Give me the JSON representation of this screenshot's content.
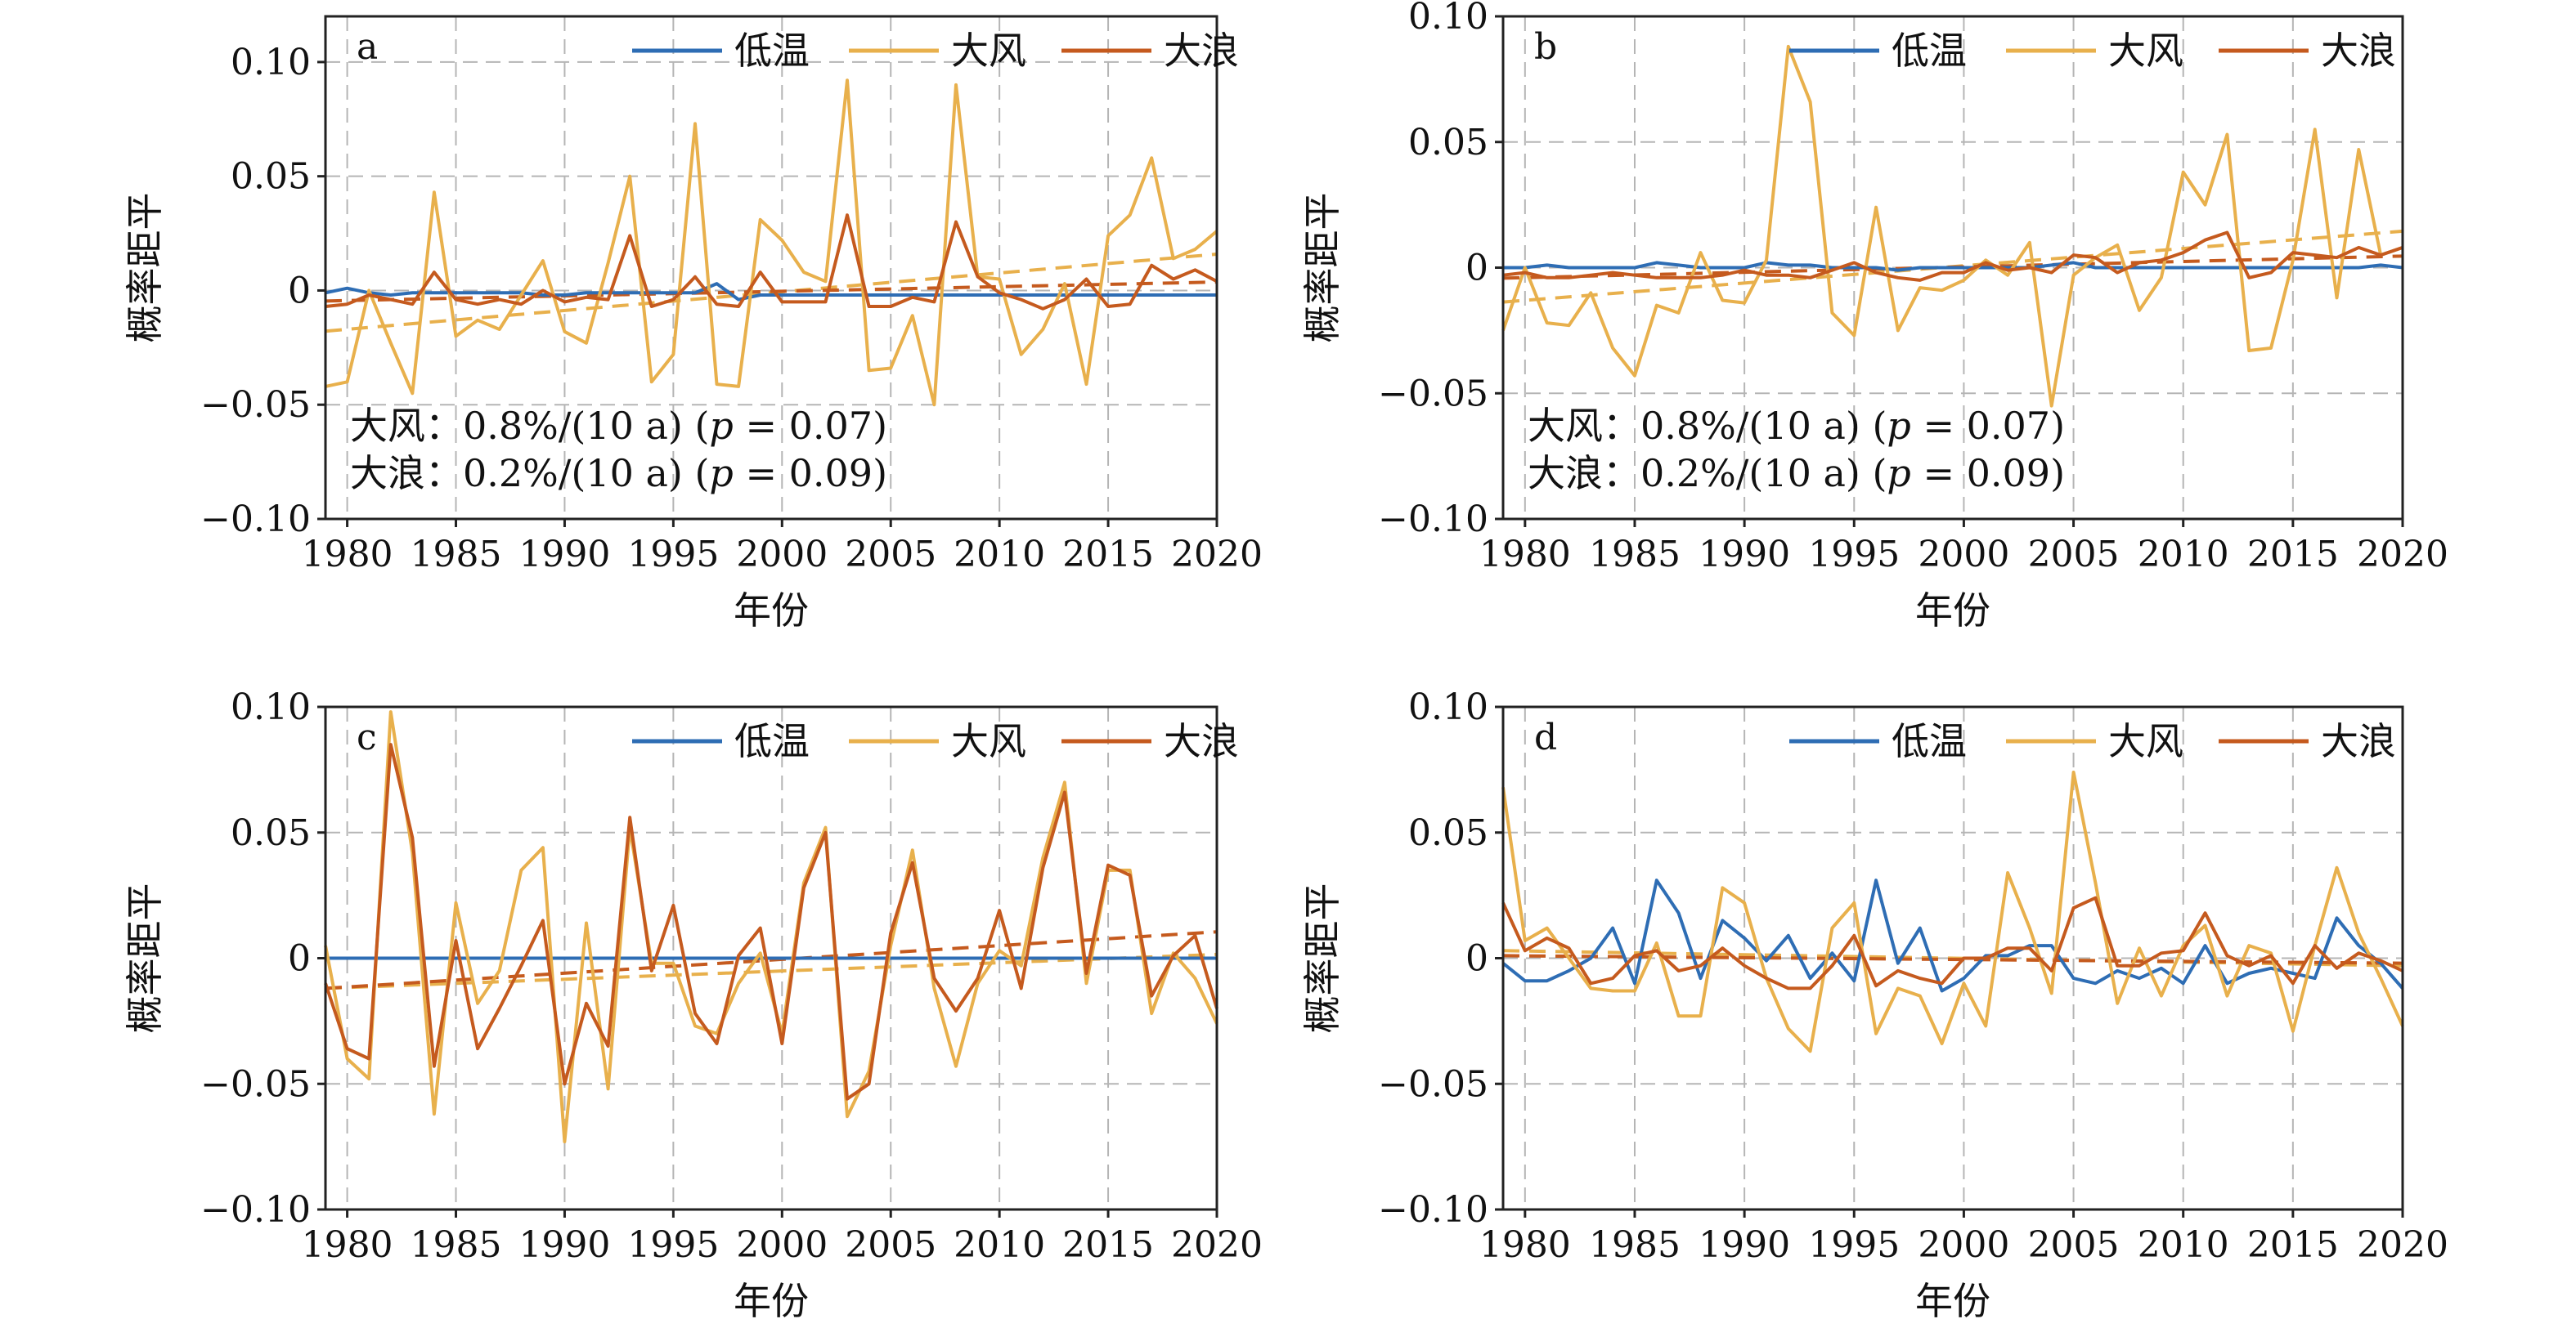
{
  "figure": {
    "colors": {
      "low_temp": "#2E6DB4",
      "gale": "#E8B04C",
      "wave": "#C55A1E",
      "grid": "#b5b5b5",
      "axis": "#222222"
    },
    "legend": [
      "低温",
      "大风",
      "大浪"
    ],
    "xlabel": "年份",
    "ylabel": "概率距平"
  },
  "chart_data": [
    {
      "type": "line",
      "panel": "a",
      "title": "",
      "xlabel": "年份",
      "ylabel": "概率距平",
      "xlim": [
        1979,
        2020
      ],
      "ylim": [
        -0.1,
        0.12
      ],
      "xticks": [
        1980,
        1985,
        1990,
        1995,
        2000,
        2005,
        2010,
        2015,
        2020
      ],
      "yticks": [
        -0.1,
        -0.05,
        0,
        0.05,
        0.1
      ],
      "ytick_labels": [
        "−0.10",
        "−0.05",
        "0",
        "0.05",
        "0.10"
      ],
      "grid": true,
      "legend_position": "top-right",
      "x": [
        1979,
        1980,
        1981,
        1982,
        1983,
        1984,
        1985,
        1986,
        1987,
        1988,
        1989,
        1990,
        1991,
        1992,
        1993,
        1994,
        1995,
        1996,
        1997,
        1998,
        1999,
        2000,
        2001,
        2002,
        2003,
        2004,
        2005,
        2006,
        2007,
        2008,
        2009,
        2010,
        2011,
        2012,
        2013,
        2014,
        2015,
        2016,
        2017,
        2018,
        2019,
        2020
      ],
      "series": [
        {
          "name": "低温",
          "key": "low_temp",
          "values": [
            -0.001,
            0.001,
            -0.001,
            -0.002,
            -0.001,
            -0.001,
            -0.001,
            -0.001,
            -0.001,
            -0.001,
            -0.002,
            -0.002,
            -0.001,
            -0.001,
            -0.001,
            -0.001,
            -0.001,
            -0.001,
            0.003,
            -0.004,
            -0.002,
            -0.002,
            -0.002,
            -0.002,
            -0.002,
            -0.002,
            -0.002,
            -0.002,
            -0.002,
            -0.002,
            -0.002,
            -0.002,
            -0.002,
            -0.002,
            -0.002,
            -0.002,
            -0.002,
            -0.002,
            -0.002,
            -0.002,
            -0.002,
            -0.002
          ]
        },
        {
          "name": "大风",
          "key": "gale",
          "values": [
            -0.042,
            -0.04,
            0,
            -0.023,
            -0.045,
            0.043,
            -0.02,
            -0.013,
            -0.017,
            -0.002,
            0.013,
            -0.018,
            -0.023,
            0.012,
            0.05,
            -0.04,
            -0.028,
            0.073,
            -0.041,
            -0.042,
            0.031,
            0.022,
            0.008,
            0.004,
            0.092,
            -0.035,
            -0.034,
            -0.011,
            -0.05,
            0.09,
            0.006,
            0.005,
            -0.028,
            -0.017,
            0.003,
            -0.041,
            0.024,
            0.033,
            0.058,
            0.014,
            0.018,
            0.026
          ]
        },
        {
          "name": "大浪",
          "key": "wave",
          "values": [
            -0.007,
            -0.006,
            -0.002,
            -0.004,
            -0.006,
            0.008,
            -0.004,
            -0.006,
            -0.004,
            -0.006,
            0,
            -0.005,
            -0.003,
            -0.004,
            0.024,
            -0.007,
            -0.004,
            0.006,
            -0.006,
            -0.007,
            0.008,
            -0.005,
            -0.005,
            -0.005,
            0.033,
            -0.007,
            -0.007,
            -0.003,
            -0.005,
            0.03,
            0.006,
            -0.001,
            -0.004,
            -0.008,
            -0.004,
            0.005,
            -0.007,
            -0.006,
            0.011,
            0.005,
            0.009,
            0.004
          ]
        }
      ],
      "trends": [
        {
          "key": "gale",
          "values": [
            -0.0178,
            0.0159
          ]
        },
        {
          "key": "wave",
          "values": [
            -0.0046,
            0.0037
          ]
        }
      ],
      "annotations": [
        {
          "label": "大风：",
          "text": "0.8%/(10 a) (",
          "p": "p",
          "rest": " = 0.07)"
        },
        {
          "label": "大浪：",
          "text": "0.2%/(10 a) (",
          "p": "p",
          "rest": " = 0.09)"
        }
      ]
    },
    {
      "type": "line",
      "panel": "b",
      "title": "",
      "xlabel": "年份",
      "ylabel": "概率距平",
      "xlim": [
        1979,
        2020
      ],
      "ylim": [
        -0.1,
        0.1
      ],
      "xticks": [
        1980,
        1985,
        1990,
        1995,
        2000,
        2005,
        2010,
        2015,
        2020
      ],
      "yticks": [
        -0.1,
        -0.05,
        0,
        0.05,
        0.1
      ],
      "ytick_labels": [
        "−0.10",
        "−0.05",
        "0",
        "0.05",
        "0.10"
      ],
      "grid": true,
      "legend_position": "top-right",
      "x": [
        1979,
        1980,
        1981,
        1982,
        1983,
        1984,
        1985,
        1986,
        1987,
        1988,
        1989,
        1990,
        1991,
        1992,
        1993,
        1994,
        1995,
        1996,
        1997,
        1998,
        1999,
        2000,
        2001,
        2002,
        2003,
        2004,
        2005,
        2006,
        2007,
        2008,
        2009,
        2010,
        2011,
        2012,
        2013,
        2014,
        2015,
        2016,
        2017,
        2018,
        2019,
        2020
      ],
      "series": [
        {
          "name": "低温",
          "key": "low_temp",
          "values": [
            0,
            0,
            0.001,
            0,
            0,
            0,
            0,
            0.002,
            0.001,
            0,
            0,
            0,
            0.002,
            0.001,
            0.001,
            0,
            0,
            0,
            -0.001,
            0,
            0,
            0,
            0,
            0,
            0,
            0.001,
            0.002,
            0,
            0,
            0,
            0,
            0,
            0,
            0,
            0,
            0,
            0,
            0,
            0,
            0,
            0.001,
            0
          ]
        },
        {
          "name": "大风",
          "key": "gale",
          "values": [
            -0.025,
            0,
            -0.022,
            -0.023,
            -0.01,
            -0.032,
            -0.043,
            -0.015,
            -0.018,
            0.006,
            -0.013,
            -0.014,
            0.003,
            0.088,
            0.066,
            -0.018,
            -0.027,
            0.024,
            -0.025,
            -0.008,
            -0.009,
            -0.005,
            0.003,
            -0.003,
            0.01,
            -0.055,
            -0.003,
            0.004,
            0.009,
            -0.017,
            -0.004,
            0.038,
            0.025,
            0.053,
            -0.033,
            -0.032,
            0.003,
            0.055,
            -0.012,
            0.047,
            0.005,
            0.008
          ]
        },
        {
          "name": "大浪",
          "key": "wave",
          "values": [
            -0.003,
            -0.002,
            -0.004,
            -0.004,
            -0.003,
            -0.002,
            -0.003,
            -0.004,
            -0.004,
            -0.004,
            -0.003,
            -0.001,
            -0.003,
            -0.003,
            -0.004,
            -0.001,
            0.002,
            -0.002,
            -0.004,
            -0.005,
            -0.002,
            -0.002,
            0.002,
            -0.001,
            0,
            -0.002,
            0.005,
            0.004,
            -0.002,
            0.002,
            0.003,
            0.006,
            0.011,
            0.014,
            -0.004,
            -0.002,
            0.006,
            0.005,
            0.004,
            0.008,
            0.005,
            0.008
          ]
        }
      ],
      "trends": [
        {
          "key": "gale",
          "values": [
            -0.0137,
            0.0145
          ]
        },
        {
          "key": "wave",
          "values": [
            -0.0042,
            0.0046
          ]
        }
      ],
      "annotations": [
        {
          "label": "大风：",
          "text": "0.8%/(10 a) (",
          "p": "p",
          "rest": " = 0.07)"
        },
        {
          "label": "大浪：",
          "text": "0.2%/(10 a) (",
          "p": "p",
          "rest": " = 0.09)"
        }
      ]
    },
    {
      "type": "line",
      "panel": "c",
      "title": "",
      "xlabel": "年份",
      "ylabel": "概率距平",
      "xlim": [
        1979,
        2020
      ],
      "ylim": [
        -0.1,
        0.1
      ],
      "xticks": [
        1980,
        1985,
        1990,
        1995,
        2000,
        2005,
        2010,
        2015,
        2020
      ],
      "yticks": [
        -0.1,
        -0.05,
        0,
        0.05,
        0.1
      ],
      "ytick_labels": [
        "−0.10",
        "−0.05",
        "0",
        "0.05",
        "0.10"
      ],
      "grid": true,
      "legend_position": "top-right",
      "x": [
        1979,
        1980,
        1981,
        1982,
        1983,
        1984,
        1985,
        1986,
        1987,
        1988,
        1989,
        1990,
        1991,
        1992,
        1993,
        1994,
        1995,
        1996,
        1997,
        1998,
        1999,
        2000,
        2001,
        2002,
        2003,
        2004,
        2005,
        2006,
        2007,
        2008,
        2009,
        2010,
        2011,
        2012,
        2013,
        2014,
        2015,
        2016,
        2017,
        2018,
        2019,
        2020
      ],
      "series": [
        {
          "name": "低温",
          "key": "low_temp",
          "values": [
            0,
            0,
            0,
            0,
            0,
            0,
            0,
            0,
            0,
            0,
            0,
            0,
            0,
            0,
            0,
            0,
            0,
            0,
            0,
            0,
            0,
            0,
            0,
            0,
            0,
            0,
            0,
            0,
            0,
            0,
            0,
            0,
            0,
            0,
            0,
            0,
            0,
            0,
            0,
            0,
            0,
            0
          ]
        },
        {
          "name": "大风",
          "key": "gale",
          "values": [
            0.005,
            -0.04,
            -0.048,
            0.098,
            0.042,
            -0.062,
            0.022,
            -0.018,
            -0.005,
            0.035,
            0.044,
            -0.073,
            0.014,
            -0.052,
            0.052,
            -0.002,
            -0.002,
            -0.027,
            -0.03,
            -0.01,
            0.002,
            -0.03,
            0.03,
            0.052,
            -0.063,
            -0.045,
            0.005,
            0.043,
            -0.012,
            -0.043,
            -0.01,
            0.003,
            -0.003,
            0.04,
            0.07,
            -0.01,
            0.035,
            0.035,
            -0.022,
            0.002,
            -0.008,
            -0.026
          ]
        },
        {
          "name": "大浪",
          "key": "wave",
          "values": [
            -0.01,
            -0.036,
            -0.04,
            0.085,
            0.048,
            -0.043,
            0.007,
            -0.036,
            -0.02,
            -0.003,
            0.015,
            -0.05,
            -0.018,
            -0.035,
            0.056,
            -0.005,
            0.021,
            -0.022,
            -0.034,
            0.001,
            0.012,
            -0.034,
            0.028,
            0.05,
            -0.056,
            -0.05,
            0.01,
            0.038,
            -0.008,
            -0.021,
            -0.008,
            0.019,
            -0.012,
            0.036,
            0.066,
            -0.006,
            0.037,
            0.033,
            -0.015,
            0.001,
            0.009,
            -0.02
          ]
        }
      ],
      "trends": [
        {
          "key": "gale",
          "values": [
            -0.012,
            0.0015
          ]
        },
        {
          "key": "wave",
          "values": [
            -0.012,
            0.0105
          ]
        }
      ],
      "annotations": []
    },
    {
      "type": "line",
      "panel": "d",
      "title": "",
      "xlabel": "年份",
      "ylabel": "概率距平",
      "xlim": [
        1979,
        2020
      ],
      "ylim": [
        -0.1,
        0.1
      ],
      "xticks": [
        1980,
        1985,
        1990,
        1995,
        2000,
        2005,
        2010,
        2015,
        2020
      ],
      "yticks": [
        -0.1,
        -0.05,
        0,
        0.05,
        0.1
      ],
      "ytick_labels": [
        "−0.10",
        "−0.05",
        "0",
        "0.05",
        "0.10"
      ],
      "grid": true,
      "legend_position": "top-right",
      "x": [
        1979,
        1980,
        1981,
        1982,
        1983,
        1984,
        1985,
        1986,
        1987,
        1988,
        1989,
        1990,
        1991,
        1992,
        1993,
        1994,
        1995,
        1996,
        1997,
        1998,
        1999,
        2000,
        2001,
        2002,
        2003,
        2004,
        2005,
        2006,
        2007,
        2008,
        2009,
        2010,
        2011,
        2012,
        2013,
        2014,
        2015,
        2016,
        2017,
        2018,
        2019,
        2020
      ],
      "series": [
        {
          "name": "低温",
          "key": "low_temp",
          "values": [
            -0.002,
            -0.009,
            -0.009,
            -0.005,
            0,
            0.012,
            -0.01,
            0.031,
            0.018,
            -0.008,
            0.015,
            0.008,
            -0.001,
            0.009,
            -0.008,
            0.002,
            -0.009,
            0.031,
            -0.002,
            0.012,
            -0.013,
            -0.008,
            0.001,
            0.001,
            0.005,
            0.005,
            -0.008,
            -0.01,
            -0.005,
            -0.008,
            -0.004,
            -0.01,
            0.005,
            -0.01,
            -0.006,
            -0.004,
            -0.006,
            -0.008,
            0.016,
            0.005,
            -0.002,
            -0.012
          ]
        },
        {
          "name": "大风",
          "key": "gale",
          "values": [
            0.068,
            0.007,
            0.012,
            0,
            -0.012,
            -0.013,
            -0.013,
            0.006,
            -0.023,
            -0.023,
            0.028,
            0.022,
            -0.008,
            -0.028,
            -0.037,
            0.012,
            0.022,
            -0.03,
            -0.012,
            -0.015,
            -0.034,
            -0.01,
            -0.027,
            0.034,
            0.012,
            -0.014,
            0.074,
            0.03,
            -0.018,
            0.004,
            -0.015,
            0.005,
            0.013,
            -0.015,
            0.005,
            0.002,
            -0.029,
            0.005,
            0.036,
            0.01,
            -0.008,
            -0.027
          ]
        },
        {
          "name": "大浪",
          "key": "wave",
          "values": [
            0.022,
            0.003,
            0.008,
            0.004,
            -0.01,
            -0.008,
            0.001,
            0.003,
            -0.005,
            -0.003,
            0.004,
            -0.003,
            -0.008,
            -0.012,
            -0.012,
            -0.003,
            0.009,
            -0.011,
            -0.005,
            -0.008,
            -0.01,
            0,
            0,
            0.004,
            0.004,
            -0.005,
            0.02,
            0.024,
            -0.003,
            -0.003,
            0.002,
            0.003,
            0.018,
            0.001,
            -0.003,
            0.001,
            -0.01,
            0.005,
            -0.004,
            0.002,
            -0.001,
            -0.005
          ]
        }
      ],
      "trends": [
        {
          "key": "gale",
          "values": [
            0.003,
            -0.003
          ]
        },
        {
          "key": "wave",
          "values": [
            0.001,
            -0.002
          ]
        }
      ],
      "annotations": []
    }
  ]
}
